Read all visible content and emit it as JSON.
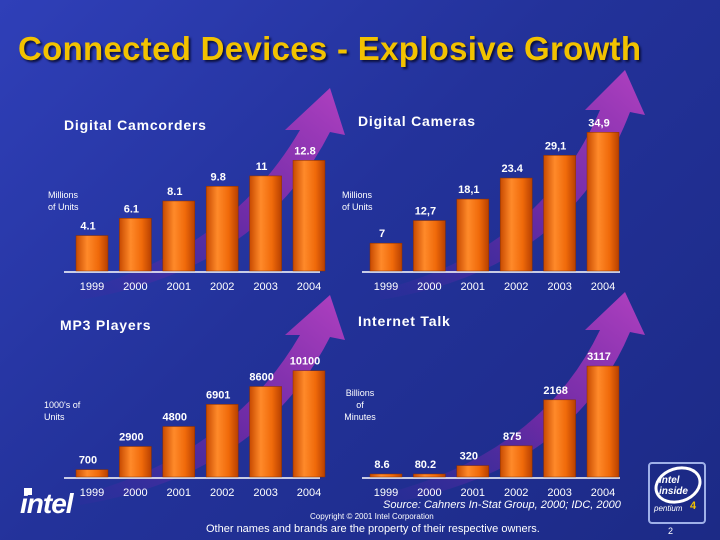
{
  "title": "Connected Devices - Explosive Growth",
  "colors": {
    "bar": "#f06a0a",
    "bar_light": "#ffae52",
    "bar_dark": "#c84a00",
    "arrow": "#8a2aa8",
    "background": "#23329a"
  },
  "chart_data": [
    {
      "type": "bar",
      "title": "Digital Camcorders",
      "ylabel": "Millions of Units",
      "categories": [
        "1999",
        "2000",
        "2001",
        "2002",
        "2003",
        "2004"
      ],
      "values": [
        4.1,
        6.1,
        8.1,
        9.8,
        11,
        12.8
      ],
      "value_labels": [
        "4.1",
        "6.1",
        "8.1",
        "9.8",
        "11",
        "12.8"
      ],
      "ylim": [
        0,
        14
      ]
    },
    {
      "type": "bar",
      "title": "Digital Cameras",
      "ylabel": "Millions of Units",
      "categories": [
        "1999",
        "2000",
        "2001",
        "2002",
        "2003",
        "2004"
      ],
      "values": [
        7,
        12.7,
        18.1,
        23.4,
        29.1,
        34.9
      ],
      "value_labels": [
        "7",
        "12,7",
        "18,1",
        "23.4",
        "29,1",
        "34,9"
      ],
      "ylim": [
        0,
        38
      ]
    },
    {
      "type": "bar",
      "title": "MP3 Players",
      "ylabel": "1000's of Units",
      "categories": [
        "1999",
        "2000",
        "2001",
        "2002",
        "2003",
        "2004"
      ],
      "values": [
        700,
        2900,
        4800,
        6901,
        8600,
        10100
      ],
      "value_labels": [
        "700",
        "2900",
        "4800",
        "6901",
        "8600",
        "10100"
      ],
      "ylim": [
        0,
        11500
      ]
    },
    {
      "type": "bar",
      "title": "Internet Talk",
      "ylabel": "Billions of Minutes",
      "categories": [
        "1999",
        "2000",
        "2001",
        "2002",
        "2003",
        "2004"
      ],
      "values": [
        8.6,
        80.2,
        320,
        875,
        2168,
        3117
      ],
      "value_labels": [
        "8.6",
        "80.2",
        "320",
        "875",
        "2168",
        "3117"
      ],
      "ylim": [
        0,
        3400
      ]
    }
  ],
  "footer": {
    "source": "Source: Cahners In-Stat Group, 2000; IDC, 2000",
    "copyright": "Copyright © 2001 Intel Corporation",
    "disclaimer": "Other names and brands are the property of their respective owners.",
    "page": "2"
  },
  "logos": {
    "intel": "intel",
    "badge_top": "intel inside",
    "badge_bottom": "pentium",
    "badge_num": "4"
  }
}
